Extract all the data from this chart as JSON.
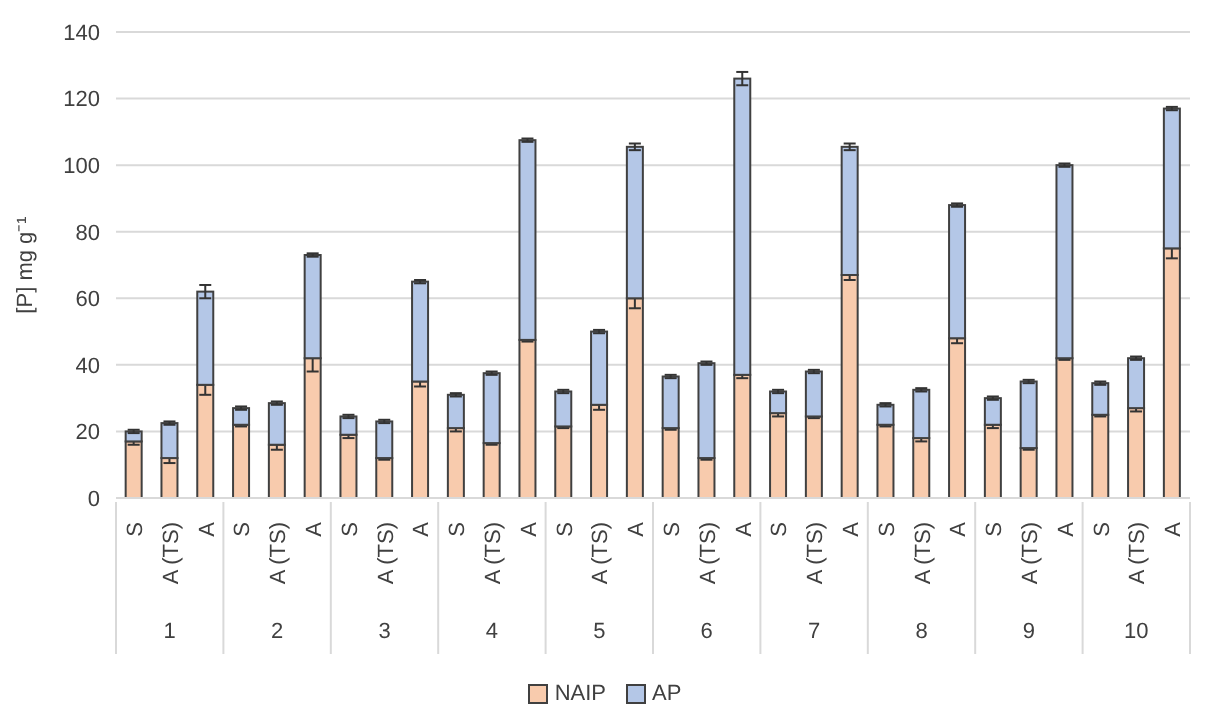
{
  "chart_data": {
    "type": "bar",
    "stacked": true,
    "ylabel": "[P] mg g⁻¹",
    "categories": [
      "S",
      "A (TS)",
      "A",
      "S",
      "A (TS)",
      "A",
      "S",
      "A (TS)",
      "A",
      "S",
      "A (TS)",
      "A",
      "S",
      "A (TS)",
      "A",
      "S",
      "A (TS)",
      "A",
      "S",
      "A (TS)",
      "A",
      "S",
      "A (TS)",
      "A",
      "S",
      "A (TS)",
      "A",
      "S",
      "A (TS)",
      "A"
    ],
    "annotations": [
      "1",
      "2",
      "3",
      "4",
      "5",
      "6",
      "7",
      "8",
      "9",
      "10"
    ],
    "series": [
      {
        "name": "NAIP",
        "color": "#f8cbad",
        "values": [
          17,
          12,
          34,
          22,
          16,
          42,
          19,
          12,
          35,
          21,
          16.5,
          47.5,
          21.5,
          28,
          60,
          21,
          12,
          37,
          25.5,
          24.5,
          67,
          22,
          18,
          48,
          22,
          15,
          42,
          25,
          27,
          75
        ],
        "errors": [
          1,
          1.5,
          3,
          0.5,
          1.5,
          4,
          1,
          0.5,
          1.5,
          1,
          0.5,
          0.5,
          0.5,
          1.5,
          3,
          0.5,
          0.5,
          1,
          1,
          0.5,
          1.5,
          0.5,
          1,
          1.5,
          1,
          0.5,
          0.5,
          0.5,
          1,
          3
        ]
      },
      {
        "name": "AP",
        "color": "#b4c7e7",
        "values": [
          3,
          10.5,
          28,
          5,
          12.5,
          31,
          5.5,
          11,
          30,
          10,
          21,
          60,
          10.5,
          22,
          45.5,
          15.5,
          28.5,
          89,
          6.5,
          13.5,
          38.5,
          6,
          14.5,
          40,
          8,
          20,
          58,
          9.5,
          15,
          42
        ],
        "errors": [
          0.5,
          0.5,
          2,
          0.5,
          0.5,
          0.5,
          0.5,
          0.5,
          0.5,
          0.5,
          0.5,
          0.5,
          0.5,
          0.5,
          1,
          0.5,
          0.5,
          2,
          0.5,
          0.5,
          1,
          0.5,
          0.5,
          0.5,
          0.5,
          0.5,
          0.5,
          0.5,
          0.5,
          0.5
        ]
      }
    ],
    "ylim": [
      0,
      140
    ],
    "yticks": [
      0,
      20,
      40,
      60,
      80,
      100,
      120,
      140
    ],
    "grid": "y",
    "legend": "bottom"
  }
}
